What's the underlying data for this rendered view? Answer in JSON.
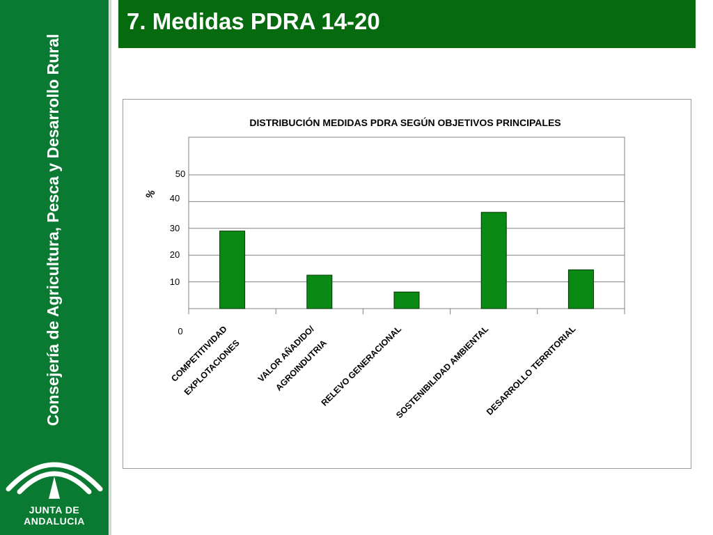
{
  "sidebar": {
    "vertical_text": "Consejería de Agricultura, Pesca y Desarrollo Rural",
    "logo_text": "JUNTA DE ANDALUCIA"
  },
  "header": {
    "title": "7. Medidas PDRA 14-20"
  },
  "colors": {
    "sidebar": "#0a7a32",
    "title_bar": "#066b0f",
    "bar_fill": "#0a8a14",
    "bar_stroke": "#003300"
  },
  "chart_data": {
    "type": "bar",
    "title": "DISTRIBUCIÓN MEDIDAS PDRA SEGÚN OBJETIVOS PRINCIPALES",
    "ylabel": "%",
    "xlabel": "",
    "categories": [
      [
        "COMPETITIVIDAD",
        "EXPLOTACIONES"
      ],
      [
        "VALOR AÑADIDO/",
        "AGROINDUTRIA"
      ],
      [
        "RELEVO GENERACIONAL"
      ],
      [
        "SOSTENIBILIDAD AMBIENTAL"
      ],
      [
        "DESARROLLO TERRITORIAL"
      ]
    ],
    "values": [
      29,
      12.5,
      6.2,
      36,
      14.5
    ],
    "ylim": [
      0,
      50
    ],
    "yticks": [
      0,
      10,
      20,
      30,
      40,
      50
    ],
    "ygrid_values": [
      10,
      20,
      30,
      40,
      50
    ],
    "grid": true,
    "legend": "none"
  }
}
